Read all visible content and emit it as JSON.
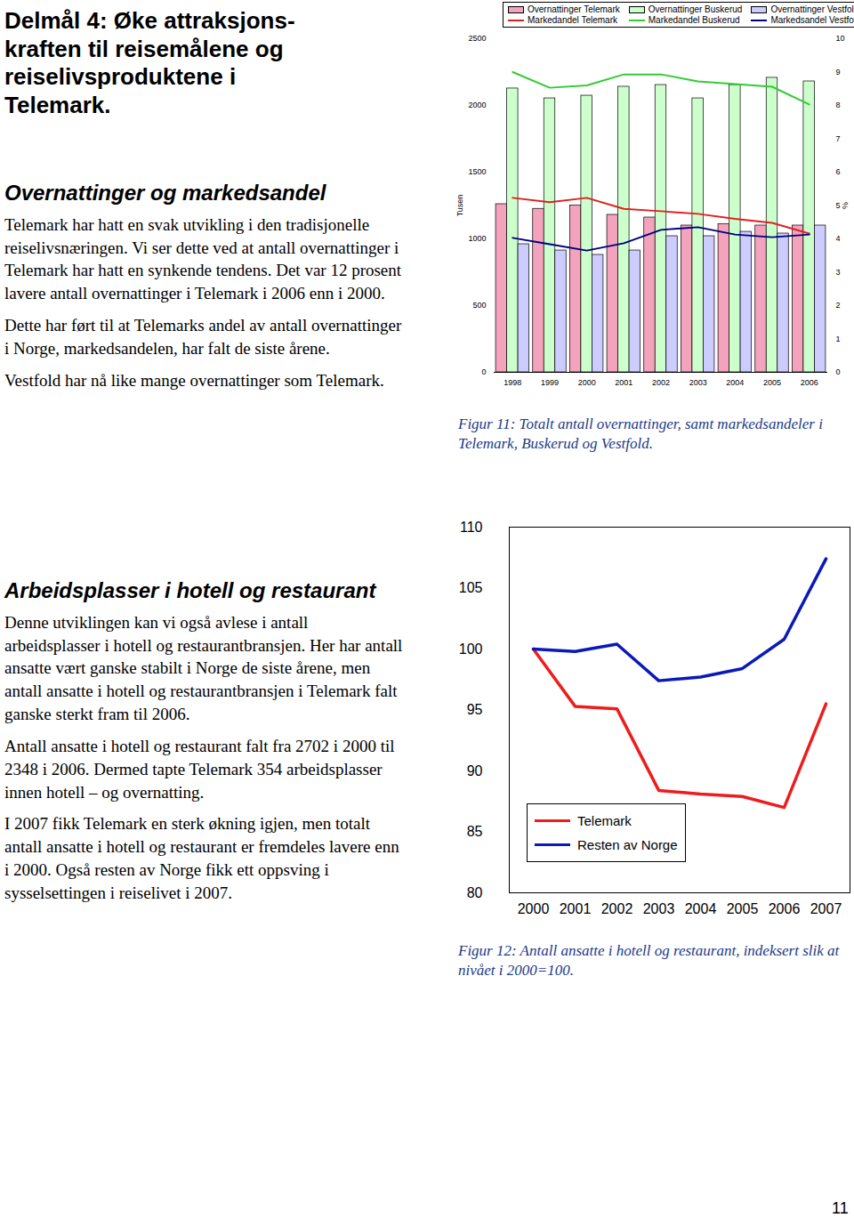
{
  "heading": [
    "Delmål 4: Øke attraksjons-",
    "kraften til reisemålene og",
    "reiselivsproduktene i",
    "Telemark."
  ],
  "sections": [
    {
      "title": "Overnattinger og markedsandel",
      "paragraphs": [
        "Telemark har hatt en svak utvikling i den tradisjonelle reiselivsnæringen. Vi ser dette ved at antall overnattinger i Telemark har hatt en synkende tendens. Det var 12 prosent lavere antall overnattinger i Telemark i 2006 enn i 2000.",
        "Dette har ført til at Telemarks andel av antall overnattinger i Norge, markedsandelen, har falt de siste årene.",
        "Vestfold har nå like mange overnattinger som Telemark."
      ]
    },
    {
      "title": "Arbeidsplasser i hotell og restaurant",
      "paragraphs": [
        "Denne utviklingen kan vi også avlese i antall arbeidsplasser i hotell og restaurantbransjen. Her har antall ansatte vært ganske stabilt i Norge de siste årene, men antall ansatte i hotell og restaurantbransjen i Telemark falt ganske sterkt fram til 2006.",
        "Antall ansatte i hotell og restaurant falt fra 2702 i 2000 til 2348 i 2006. Dermed tapte Telemark 354 arbeidsplasser innen hotell – og overnatting.",
        "I 2007 fikk Telemark en sterk økning igjen, men totalt antall ansatte i hotell og restaurant er fremdeles lavere enn i 2000. Også resten av Norge fikk ett oppsving i sysselsettingen i reiselivet i 2007."
      ]
    }
  ],
  "chart_data": [
    {
      "type": "bar",
      "caption": "Figur 11: Totalt antall overnattinger, samt markedsandeler i Telemark, Buskerud og Vestfold.",
      "categories": [
        "1998",
        "1999",
        "2000",
        "2001",
        "2002",
        "2003",
        "2004",
        "2005",
        "2006"
      ],
      "ylabel": "Tusen",
      "y2label": "%",
      "ylim": [
        0,
        2500
      ],
      "yticks": [
        0,
        500,
        1000,
        1500,
        2000,
        2500
      ],
      "y2lim": [
        0,
        10
      ],
      "y2ticks": [
        0,
        1,
        2,
        3,
        4,
        5,
        6,
        7,
        8,
        9,
        10
      ],
      "legend": "top",
      "series": [
        {
          "name": "Overnattinger Telemark",
          "type": "bar",
          "color": "#f4a3bd",
          "values": [
            1260,
            1225,
            1250,
            1180,
            1160,
            1100,
            1110,
            1100,
            1100
          ]
        },
        {
          "name": "Overnattinger Buskerud",
          "type": "bar",
          "color": "#ccffcc",
          "values": [
            2127,
            2053,
            2073,
            2140,
            2153,
            2053,
            2153,
            2207,
            2180
          ]
        },
        {
          "name": "Overnattinger Vestfold",
          "type": "bar",
          "color": "#ccccff",
          "values": [
            960,
            913,
            880,
            913,
            1020,
            1020,
            1053,
            1040,
            1100
          ]
        },
        {
          "name": "Markedandel Telemark",
          "type": "line",
          "axis": "y2",
          "color": "#e0201e",
          "values": [
            5.23,
            5.1,
            5.23,
            4.9,
            4.83,
            4.75,
            4.6,
            4.48,
            4.16
          ]
        },
        {
          "name": "Markedandel Buskerud",
          "type": "line",
          "axis": "y2",
          "color": "#33cc33",
          "values": [
            9.0,
            8.53,
            8.6,
            8.93,
            8.93,
            8.72,
            8.64,
            8.56,
            8.03
          ]
        },
        {
          "name": "Markedsandel Vestfold",
          "type": "line",
          "axis": "y2",
          "color": "#000080",
          "values": [
            4.03,
            3.84,
            3.65,
            3.87,
            4.27,
            4.35,
            4.13,
            4.05,
            4.13
          ]
        }
      ]
    },
    {
      "type": "line",
      "caption": "Figur 12: Antall ansatte i hotell og restaurant, indeksert slik at nivået i 2000=100.",
      "categories": [
        "2000",
        "2001",
        "2002",
        "2003",
        "2004",
        "2005",
        "2006",
        "2007"
      ],
      "ylim": [
        80,
        110
      ],
      "yticks": [
        80,
        85,
        90,
        95,
        100,
        105,
        110
      ],
      "legend": "lower left",
      "series": [
        {
          "name": "Telemark",
          "color": "#ee1c1c",
          "values": [
            100,
            95.3,
            95.1,
            88.4,
            88.1,
            87.9,
            87.0,
            95.5
          ]
        },
        {
          "name": "Resten av Norge",
          "color": "#0a1ab8",
          "values": [
            100,
            99.8,
            100.4,
            97.4,
            97.7,
            98.4,
            100.8,
            107.4
          ]
        }
      ]
    }
  ],
  "page_number": "11"
}
